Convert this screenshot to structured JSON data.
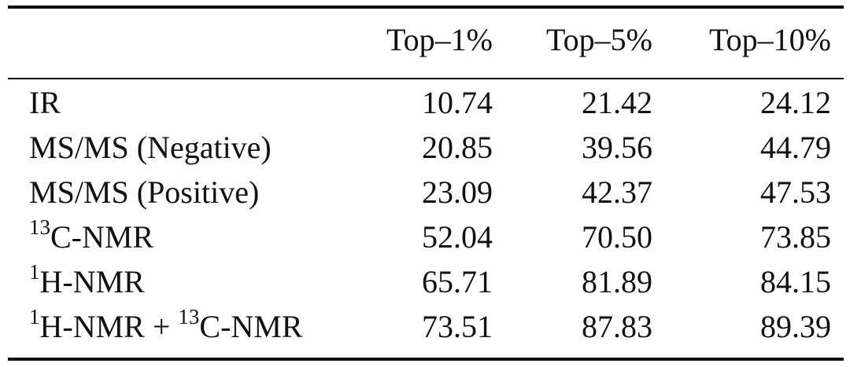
{
  "table": {
    "headers": [
      "",
      "Top–1%",
      "Top–5%",
      "Top–10%"
    ],
    "rows": [
      {
        "label_parts": {
          "pre_sup": "",
          "sup": "",
          "text": "IR",
          "sup2": "",
          "text2": ""
        },
        "values": [
          "10.74",
          "21.42",
          "24.12"
        ]
      },
      {
        "label_parts": {
          "pre_sup": "",
          "sup": "",
          "text": "MS/MS (Negative)",
          "sup2": "",
          "text2": ""
        },
        "values": [
          "20.85",
          "39.56",
          "44.79"
        ]
      },
      {
        "label_parts": {
          "pre_sup": "",
          "sup": "",
          "text": "MS/MS (Positive)",
          "sup2": "",
          "text2": ""
        },
        "values": [
          "23.09",
          "42.37",
          "47.53"
        ]
      },
      {
        "label_parts": {
          "pre_sup": "",
          "sup": "13",
          "text": "C-NMR",
          "sup2": "",
          "text2": ""
        },
        "values": [
          "52.04",
          "70.50",
          "73.85"
        ]
      },
      {
        "label_parts": {
          "pre_sup": "",
          "sup": "1",
          "text": "H-NMR",
          "sup2": "",
          "text2": ""
        },
        "values": [
          "65.71",
          "81.89",
          "84.15"
        ]
      },
      {
        "label_parts": {
          "pre_sup": "",
          "sup": "1",
          "text": "H-NMR + ",
          "sup2": "13",
          "text2": "C-NMR"
        },
        "values": [
          "73.51",
          "87.83",
          "89.39"
        ]
      }
    ]
  }
}
